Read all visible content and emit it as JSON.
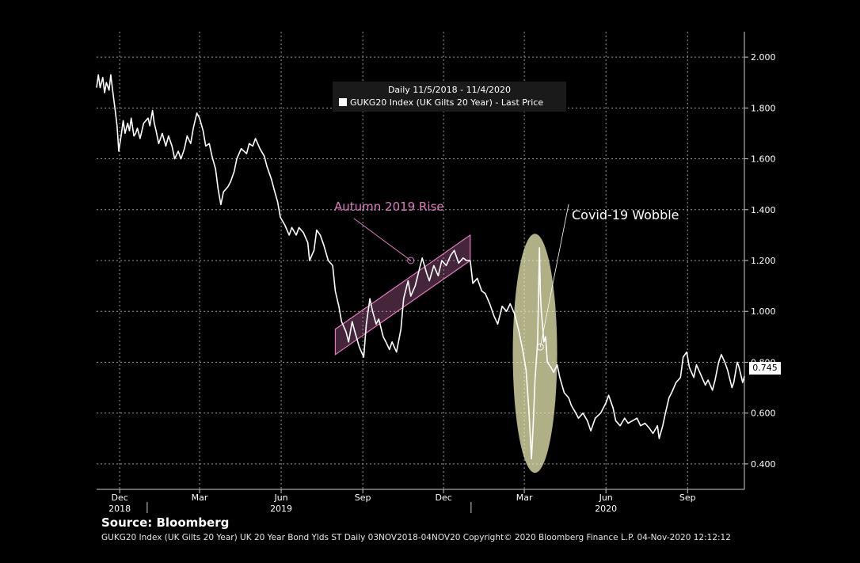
{
  "chart_data": {
    "type": "line",
    "legend": {
      "range_label": "Daily 11/5/2018 - 11/4/2020",
      "series_label": "GUKG20 Index (UK Gilts 20 Year) - Last Price"
    },
    "ylim": [
      0.3,
      2.1
    ],
    "yticks": [
      0.4,
      0.6,
      0.8,
      1.0,
      1.2,
      1.4,
      1.6,
      1.8,
      2.0
    ],
    "ytick_labels": [
      "0.400",
      "0.600",
      "0.800",
      "1.000",
      "1.200",
      "1.400",
      "1.600",
      "1.800",
      "2.000"
    ],
    "xlim": [
      "2018-11-05",
      "2020-11-04"
    ],
    "month_ticks": [
      {
        "label": "Dec",
        "date": "2018-12-01"
      },
      {
        "label": "Mar",
        "date": "2019-03-01"
      },
      {
        "label": "Jun",
        "date": "2019-06-01"
      },
      {
        "label": "Sep",
        "date": "2019-09-01"
      },
      {
        "label": "Dec",
        "date": "2019-12-01"
      },
      {
        "label": "Mar",
        "date": "2020-03-01"
      },
      {
        "label": "Jun",
        "date": "2020-06-01"
      },
      {
        "label": "Sep",
        "date": "2020-09-01"
      }
    ],
    "year_labels": [
      {
        "label": "2018",
        "date": "2018-12-01"
      },
      {
        "label": "2019",
        "date": "2019-06-01"
      },
      {
        "label": "2020",
        "date": "2020-06-01"
      }
    ],
    "year_dividers": [
      "2019-01-01",
      "2020-01-01"
    ],
    "grid": true,
    "series": [
      {
        "name": "GUKG20 Index (UK Gilts 20 Year) - Last Price",
        "color": "#ffffff",
        "points": [
          [
            "2018-11-05",
            1.88
          ],
          [
            "2018-11-07",
            1.93
          ],
          [
            "2018-11-09",
            1.88
          ],
          [
            "2018-11-12",
            1.92
          ],
          [
            "2018-11-14",
            1.86
          ],
          [
            "2018-11-16",
            1.9
          ],
          [
            "2018-11-19",
            1.87
          ],
          [
            "2018-11-21",
            1.93
          ],
          [
            "2018-11-23",
            1.87
          ],
          [
            "2018-11-26",
            1.79
          ],
          [
            "2018-11-28",
            1.73
          ],
          [
            "2018-11-30",
            1.63
          ],
          [
            "2018-12-03",
            1.7
          ],
          [
            "2018-12-05",
            1.75
          ],
          [
            "2018-12-07",
            1.7
          ],
          [
            "2018-12-10",
            1.74
          ],
          [
            "2018-12-12",
            1.71
          ],
          [
            "2018-12-14",
            1.76
          ],
          [
            "2018-12-17",
            1.69
          ],
          [
            "2018-12-19",
            1.7
          ],
          [
            "2018-12-21",
            1.72
          ],
          [
            "2018-12-24",
            1.68
          ],
          [
            "2018-12-28",
            1.74
          ],
          [
            "2019-01-02",
            1.76
          ],
          [
            "2019-01-04",
            1.73
          ],
          [
            "2019-01-07",
            1.79
          ],
          [
            "2019-01-09",
            1.74
          ],
          [
            "2019-01-11",
            1.71
          ],
          [
            "2019-01-14",
            1.66
          ],
          [
            "2019-01-16",
            1.68
          ],
          [
            "2019-01-18",
            1.7
          ],
          [
            "2019-01-22",
            1.65
          ],
          [
            "2019-01-25",
            1.69
          ],
          [
            "2019-01-29",
            1.65
          ],
          [
            "2019-02-01",
            1.6
          ],
          [
            "2019-02-05",
            1.63
          ],
          [
            "2019-02-08",
            1.6
          ],
          [
            "2019-02-12",
            1.64
          ],
          [
            "2019-02-15",
            1.69
          ],
          [
            "2019-02-19",
            1.66
          ],
          [
            "2019-02-22",
            1.72
          ],
          [
            "2019-02-26",
            1.78
          ],
          [
            "2019-03-01",
            1.76
          ],
          [
            "2019-03-05",
            1.71
          ],
          [
            "2019-03-08",
            1.65
          ],
          [
            "2019-03-12",
            1.66
          ],
          [
            "2019-03-15",
            1.61
          ],
          [
            "2019-03-19",
            1.56
          ],
          [
            "2019-03-22",
            1.48
          ],
          [
            "2019-03-25",
            1.42
          ],
          [
            "2019-03-28",
            1.47
          ],
          [
            "2019-04-02",
            1.49
          ],
          [
            "2019-04-05",
            1.51
          ],
          [
            "2019-04-09",
            1.55
          ],
          [
            "2019-04-12",
            1.6
          ],
          [
            "2019-04-17",
            1.64
          ],
          [
            "2019-04-23",
            1.62
          ],
          [
            "2019-04-26",
            1.66
          ],
          [
            "2019-04-30",
            1.65
          ],
          [
            "2019-05-03",
            1.68
          ],
          [
            "2019-05-08",
            1.64
          ],
          [
            "2019-05-13",
            1.61
          ],
          [
            "2019-05-16",
            1.57
          ],
          [
            "2019-05-21",
            1.52
          ],
          [
            "2019-05-24",
            1.48
          ],
          [
            "2019-05-28",
            1.43
          ],
          [
            "2019-05-31",
            1.37
          ],
          [
            "2019-06-05",
            1.34
          ],
          [
            "2019-06-10",
            1.3
          ],
          [
            "2019-06-13",
            1.33
          ],
          [
            "2019-06-18",
            1.3
          ],
          [
            "2019-06-21",
            1.33
          ],
          [
            "2019-06-26",
            1.31
          ],
          [
            "2019-07-01",
            1.27
          ],
          [
            "2019-07-03",
            1.2
          ],
          [
            "2019-07-08",
            1.24
          ],
          [
            "2019-07-11",
            1.32
          ],
          [
            "2019-07-15",
            1.3
          ],
          [
            "2019-07-19",
            1.26
          ],
          [
            "2019-07-24",
            1.2
          ],
          [
            "2019-07-29",
            1.18
          ],
          [
            "2019-08-01",
            1.08
          ],
          [
            "2019-08-05",
            1.02
          ],
          [
            "2019-08-08",
            0.96
          ],
          [
            "2019-08-13",
            0.92
          ],
          [
            "2019-08-16",
            0.88
          ],
          [
            "2019-08-20",
            0.96
          ],
          [
            "2019-08-23",
            0.92
          ],
          [
            "2019-08-28",
            0.86
          ],
          [
            "2019-09-02",
            0.82
          ],
          [
            "2019-09-05",
            0.95
          ],
          [
            "2019-09-09",
            1.05
          ],
          [
            "2019-09-12",
            1.0
          ],
          [
            "2019-09-16",
            0.95
          ],
          [
            "2019-09-19",
            0.97
          ],
          [
            "2019-09-24",
            0.9
          ],
          [
            "2019-09-27",
            0.88
          ],
          [
            "2019-10-01",
            0.85
          ],
          [
            "2019-10-04",
            0.88
          ],
          [
            "2019-10-09",
            0.84
          ],
          [
            "2019-10-14",
            0.93
          ],
          [
            "2019-10-17",
            1.05
          ],
          [
            "2019-10-22",
            1.12
          ],
          [
            "2019-10-25",
            1.06
          ],
          [
            "2019-10-30",
            1.1
          ],
          [
            "2019-11-04",
            1.17
          ],
          [
            "2019-11-07",
            1.21
          ],
          [
            "2019-11-12",
            1.15
          ],
          [
            "2019-11-15",
            1.12
          ],
          [
            "2019-11-20",
            1.18
          ],
          [
            "2019-11-25",
            1.14
          ],
          [
            "2019-11-29",
            1.2
          ],
          [
            "2019-12-04",
            1.18
          ],
          [
            "2019-12-09",
            1.22
          ],
          [
            "2019-12-13",
            1.24
          ],
          [
            "2019-12-18",
            1.19
          ],
          [
            "2019-12-23",
            1.21
          ],
          [
            "2019-12-27",
            1.2
          ],
          [
            "2019-12-31",
            1.2
          ],
          [
            "2020-01-03",
            1.11
          ],
          [
            "2020-01-08",
            1.13
          ],
          [
            "2020-01-13",
            1.08
          ],
          [
            "2020-01-17",
            1.07
          ],
          [
            "2020-01-22",
            1.03
          ],
          [
            "2020-01-27",
            0.98
          ],
          [
            "2020-01-31",
            0.95
          ],
          [
            "2020-02-05",
            1.02
          ],
          [
            "2020-02-10",
            1.0
          ],
          [
            "2020-02-14",
            1.03
          ],
          [
            "2020-02-19",
            0.99
          ],
          [
            "2020-02-24",
            0.92
          ],
          [
            "2020-02-28",
            0.85
          ],
          [
            "2020-03-03",
            0.77
          ],
          [
            "2020-03-06",
            0.62
          ],
          [
            "2020-03-09",
            0.42
          ],
          [
            "2020-03-11",
            0.55
          ],
          [
            "2020-03-13",
            0.73
          ],
          [
            "2020-03-16",
            0.88
          ],
          [
            "2020-03-18",
            1.25
          ],
          [
            "2020-03-19",
            1.08
          ],
          [
            "2020-03-20",
            1.01
          ],
          [
            "2020-03-23",
            0.88
          ],
          [
            "2020-03-25",
            0.9
          ],
          [
            "2020-03-27",
            0.8
          ],
          [
            "2020-03-31",
            0.78
          ],
          [
            "2020-04-03",
            0.76
          ],
          [
            "2020-04-07",
            0.79
          ],
          [
            "2020-04-10",
            0.74
          ],
          [
            "2020-04-15",
            0.68
          ],
          [
            "2020-04-20",
            0.66
          ],
          [
            "2020-04-23",
            0.63
          ],
          [
            "2020-04-28",
            0.6
          ],
          [
            "2020-05-01",
            0.58
          ],
          [
            "2020-05-06",
            0.6
          ],
          [
            "2020-05-11",
            0.57
          ],
          [
            "2020-05-15",
            0.53
          ],
          [
            "2020-05-20",
            0.58
          ],
          [
            "2020-05-26",
            0.6
          ],
          [
            "2020-06-01",
            0.64
          ],
          [
            "2020-06-04",
            0.67
          ],
          [
            "2020-06-09",
            0.62
          ],
          [
            "2020-06-12",
            0.57
          ],
          [
            "2020-06-17",
            0.55
          ],
          [
            "2020-06-22",
            0.58
          ],
          [
            "2020-06-26",
            0.56
          ],
          [
            "2020-07-01",
            0.57
          ],
          [
            "2020-07-06",
            0.58
          ],
          [
            "2020-07-10",
            0.55
          ],
          [
            "2020-07-15",
            0.56
          ],
          [
            "2020-07-20",
            0.54
          ],
          [
            "2020-07-24",
            0.52
          ],
          [
            "2020-07-29",
            0.55
          ],
          [
            "2020-07-31",
            0.5
          ],
          [
            "2020-08-04",
            0.55
          ],
          [
            "2020-08-07",
            0.6
          ],
          [
            "2020-08-11",
            0.66
          ],
          [
            "2020-08-14",
            0.68
          ],
          [
            "2020-08-19",
            0.72
          ],
          [
            "2020-08-24",
            0.74
          ],
          [
            "2020-08-27",
            0.82
          ],
          [
            "2020-08-31",
            0.84
          ],
          [
            "2020-09-03",
            0.78
          ],
          [
            "2020-09-08",
            0.74
          ],
          [
            "2020-09-11",
            0.79
          ],
          [
            "2020-09-16",
            0.75
          ],
          [
            "2020-09-21",
            0.71
          ],
          [
            "2020-09-24",
            0.73
          ],
          [
            "2020-09-29",
            0.69
          ],
          [
            "2020-10-02",
            0.73
          ],
          [
            "2020-10-06",
            0.8
          ],
          [
            "2020-10-09",
            0.83
          ],
          [
            "2020-10-13",
            0.8
          ],
          [
            "2020-10-16",
            0.77
          ],
          [
            "2020-10-21",
            0.7
          ],
          [
            "2020-10-23",
            0.72
          ],
          [
            "2020-10-27",
            0.8
          ],
          [
            "2020-10-29",
            0.78
          ],
          [
            "2020-11-02",
            0.72
          ],
          [
            "2020-11-04",
            0.745
          ]
        ]
      }
    ],
    "last_value_label": "0.745",
    "annotations": [
      {
        "text": "Autumn 2019 Rise",
        "color": "#e17bc0"
      },
      {
        "text": "Covid-19 Wobble",
        "color": "#ffffff"
      }
    ],
    "channel": {
      "color": "#e17bc0",
      "lower": [
        [
          "2019-08-01",
          0.83
        ],
        [
          "2019-12-31",
          1.2
        ]
      ],
      "upper": [
        [
          "2019-08-01",
          0.93
        ],
        [
          "2019-12-31",
          1.3
        ]
      ]
    },
    "ellipse": {
      "center": [
        "2020-03-13",
        0.835
      ],
      "rx_days": 25,
      "ry": 0.47,
      "fill": "#f5f2b8"
    }
  },
  "source": "Source: Bloomberg",
  "footer": "GUKG20 Index (UK Gilts 20 Year) UK 20 Year Bond Ylds ST  Daily 03NOV2018-04NOV20 Copyright© 2020 Bloomberg Finance L.P. 04-Nov-2020 12:12:12"
}
